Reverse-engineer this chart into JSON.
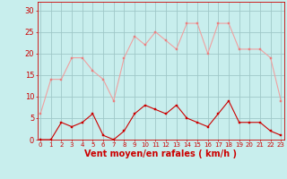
{
  "x": [
    0,
    1,
    2,
    3,
    4,
    5,
    6,
    7,
    8,
    9,
    10,
    11,
    12,
    13,
    14,
    15,
    16,
    17,
    18,
    19,
    20,
    21,
    22,
    23
  ],
  "rafales": [
    6,
    14,
    14,
    19,
    19,
    16,
    14,
    9,
    19,
    24,
    22,
    25,
    23,
    21,
    27,
    27,
    20,
    27,
    27,
    21,
    21,
    21,
    19,
    9
  ],
  "moyen": [
    0,
    0,
    4,
    3,
    4,
    6,
    1,
    0,
    2,
    6,
    8,
    7,
    6,
    8,
    5,
    4,
    3,
    6,
    9,
    4,
    4,
    4,
    2,
    1
  ],
  "bg_color": "#c8eeed",
  "grid_color": "#a0c8c8",
  "line_rafales_color": "#f0a0a0",
  "line_moyen_color": "#cc0000",
  "marker_color_rafales": "#e88080",
  "marker_color_moyen": "#cc0000",
  "xlabel": "Vent moyen/en rafales ( km/h )",
  "ylabel_ticks": [
    0,
    5,
    10,
    15,
    20,
    25,
    30
  ],
  "ylim": [
    0,
    32
  ],
  "xlim": [
    -0.3,
    23.3
  ],
  "xlabel_color": "#cc0000",
  "tick_color": "#cc0000",
  "label_fontsize": 7,
  "tick_fontsize_x": 5,
  "tick_fontsize_y": 6
}
